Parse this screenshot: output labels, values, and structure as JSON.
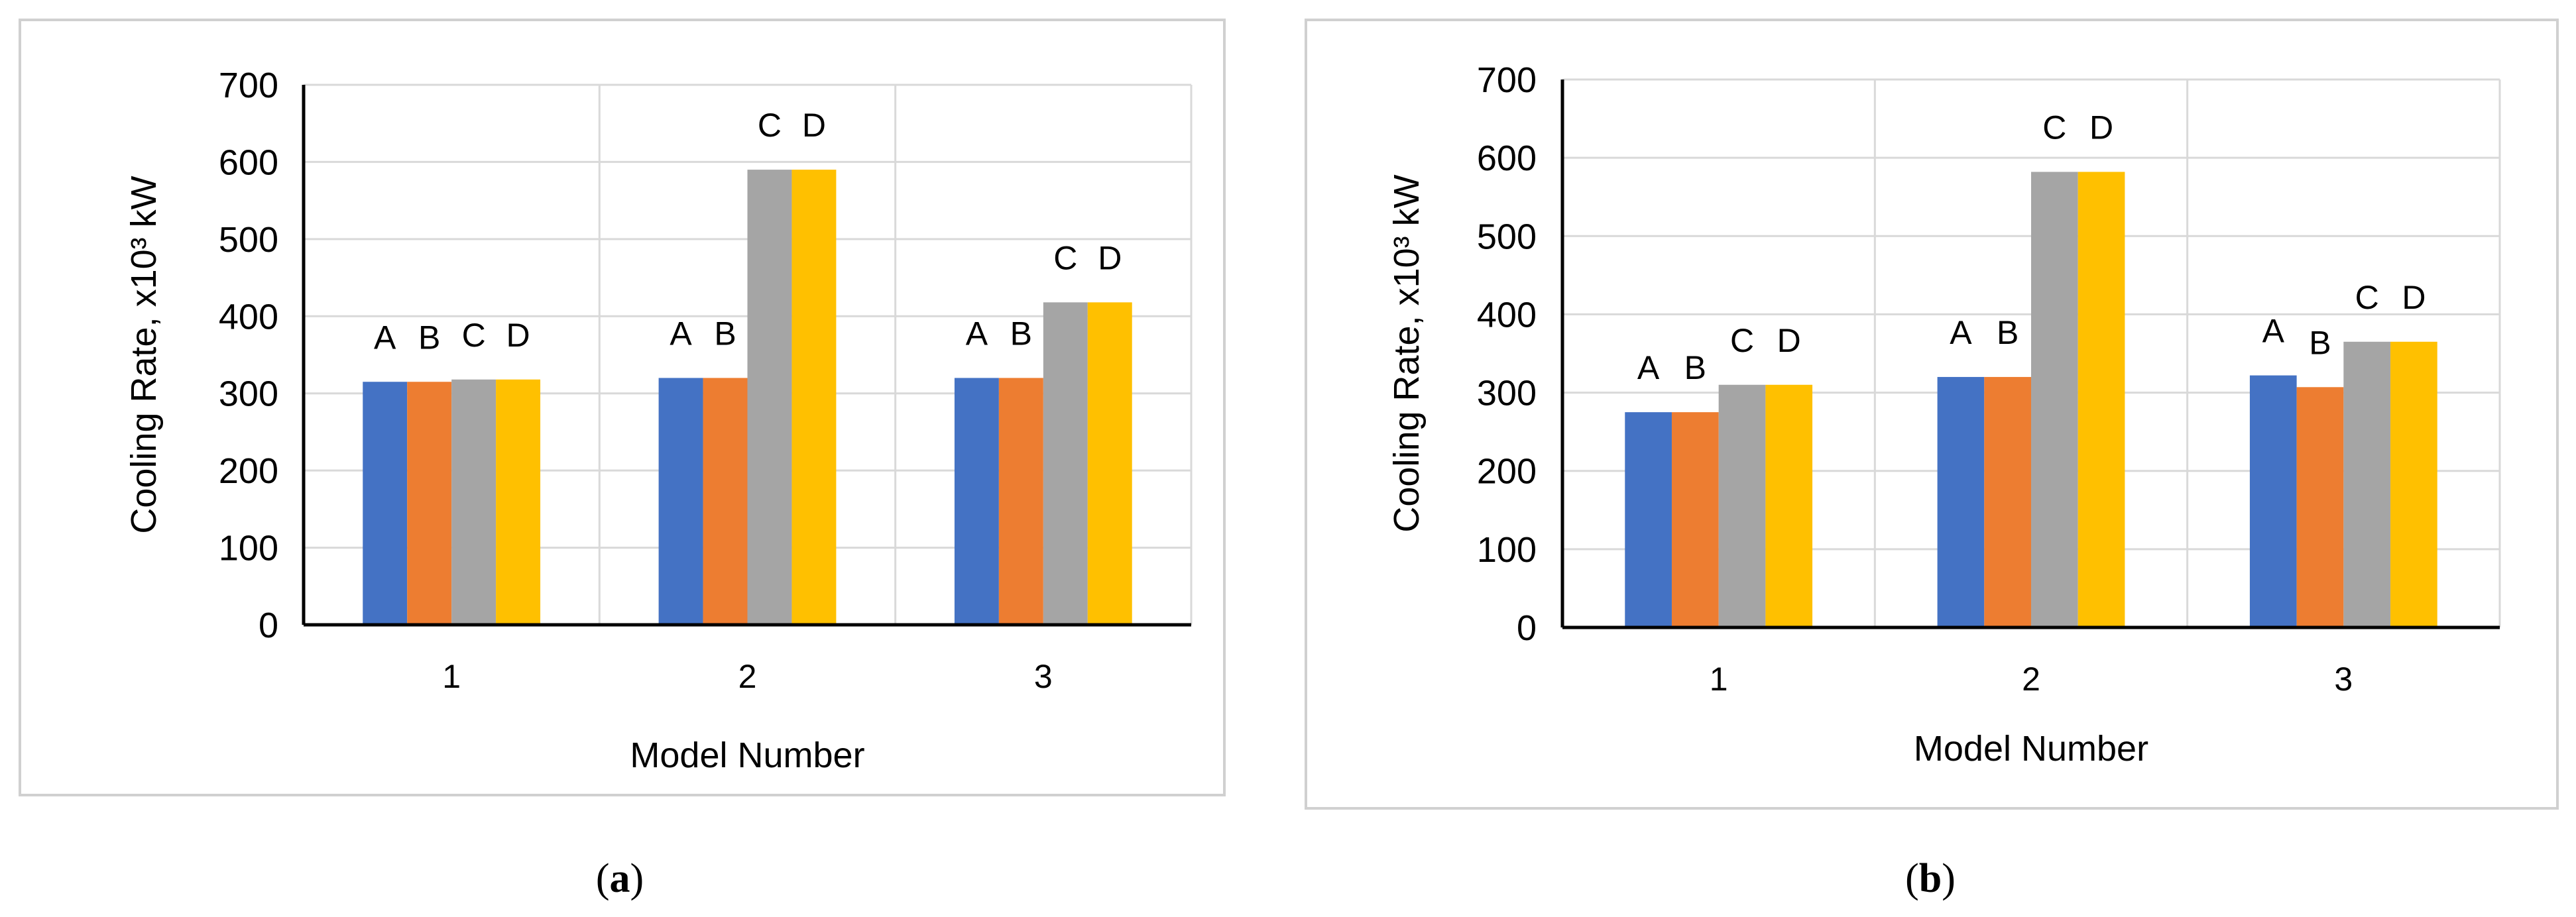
{
  "colors": {
    "A": "#4472C4",
    "B": "#ED7D31",
    "C": "#A5A5A5",
    "D": "#FFC000",
    "grid": "#d9d9d9",
    "axis": "#000000",
    "frame": "#d0d0d0",
    "text": "#000000"
  },
  "captions": [
    {
      "open": "(",
      "letter": "a",
      "close": ")"
    },
    {
      "open": "(",
      "letter": "b",
      "close": ")"
    }
  ],
  "chart_data": [
    {
      "type": "bar",
      "title": "",
      "xlabel": "Model Number",
      "ylabel": "Cooling Rate, x10³ kW",
      "ylim": [
        0,
        700
      ],
      "yticks": [
        0,
        100,
        200,
        300,
        400,
        500,
        600,
        700
      ],
      "categories": [
        "1",
        "2",
        "3"
      ],
      "grid": true,
      "series": [
        {
          "name": "A",
          "values": [
            315,
            320,
            320
          ]
        },
        {
          "name": "B",
          "values": [
            315,
            320,
            320
          ]
        },
        {
          "name": "C",
          "values": [
            318,
            590,
            418
          ]
        },
        {
          "name": "D",
          "values": [
            318,
            590,
            418
          ]
        }
      ],
      "data_labels": [
        [
          "A",
          "B",
          "C",
          "D"
        ],
        [
          "A",
          "B",
          "C",
          "D"
        ],
        [
          "A",
          "B",
          "C",
          "D"
        ]
      ]
    },
    {
      "type": "bar",
      "title": "",
      "xlabel": "Model Number",
      "ylabel": "Cooling Rate, x10³ kW",
      "ylim": [
        0,
        700
      ],
      "yticks": [
        0,
        100,
        200,
        300,
        400,
        500,
        600,
        700
      ],
      "categories": [
        "1",
        "2",
        "3"
      ],
      "grid": true,
      "series": [
        {
          "name": "A",
          "values": [
            275,
            320,
            322
          ]
        },
        {
          "name": "B",
          "values": [
            275,
            320,
            307
          ]
        },
        {
          "name": "C",
          "values": [
            310,
            582,
            365
          ]
        },
        {
          "name": "D",
          "values": [
            310,
            582,
            365
          ]
        }
      ],
      "data_labels": [
        [
          "A",
          "B",
          "C",
          "D"
        ],
        [
          "A",
          "B",
          "C",
          "D"
        ],
        [
          "A",
          "B",
          "C",
          "D"
        ]
      ]
    }
  ]
}
